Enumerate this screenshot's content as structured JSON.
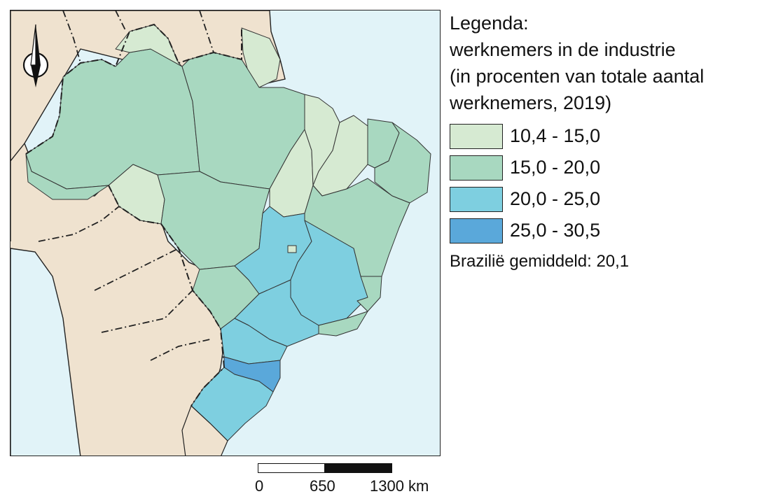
{
  "legend": {
    "title_lines": [
      "Legenda:",
      "werknemers in de industrie",
      "(in procenten van totale aantal",
      "werknemers, 2019)"
    ],
    "classes": [
      {
        "label": "10,4 - 15,0",
        "color": "#d6ead2"
      },
      {
        "label": "15,0 - 20,0",
        "color": "#a8d8c0"
      },
      {
        "label": "20,0 - 25,0",
        "color": "#7ecfe0"
      },
      {
        "label": "25,0 - 30,5",
        "color": "#5aa8da"
      }
    ],
    "average_note": "Brazilië gemiddeld: 20,1"
  },
  "scalebar": {
    "labels": [
      "0",
      "650",
      "1300 km"
    ]
  },
  "map": {
    "colors": {
      "sea": "#e1f3f8",
      "land": "#efe2cf",
      "border": "#222222"
    },
    "north_arrow": "north-arrow-icon"
  }
}
